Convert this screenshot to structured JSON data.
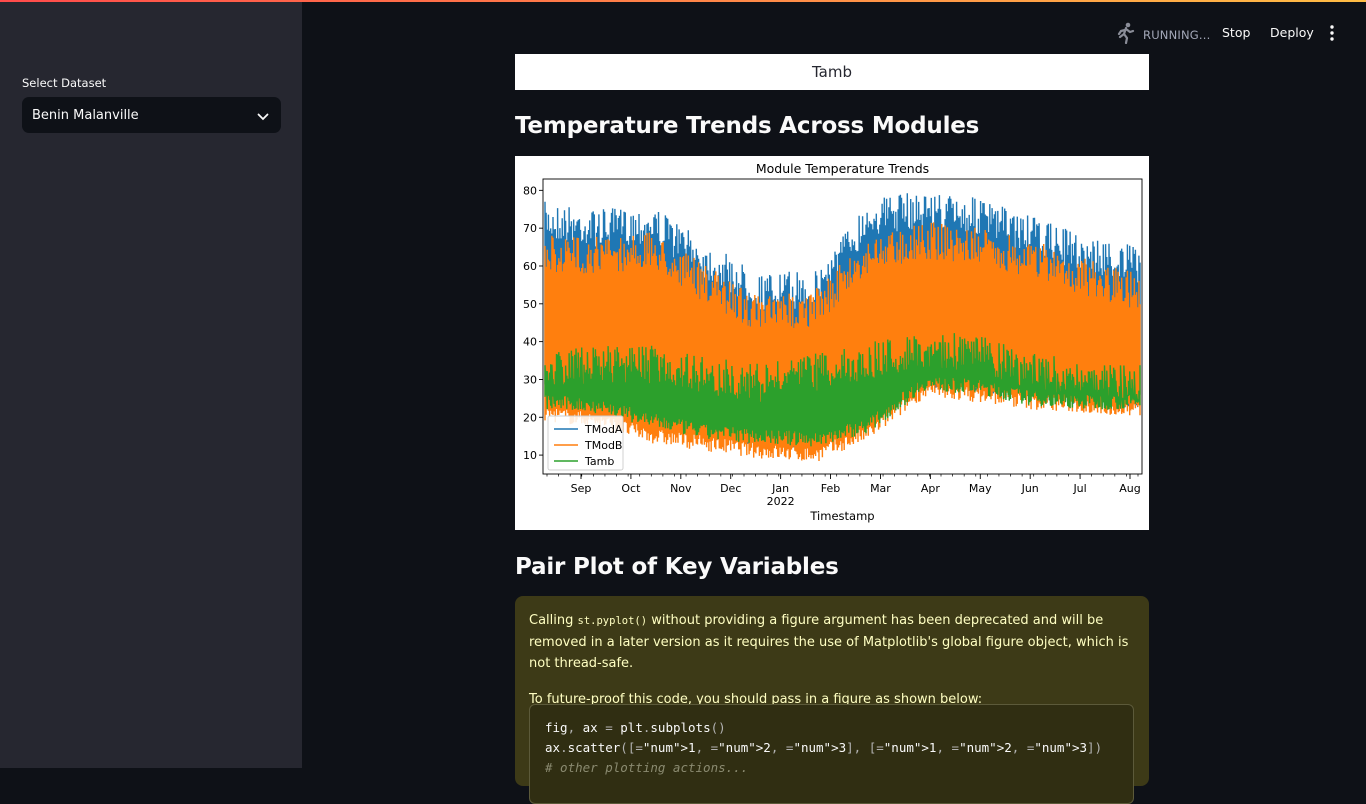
{
  "sidebar": {
    "select_label": "Select Dataset",
    "select_value": "Benin Malanville"
  },
  "header": {
    "status": "RUNNING...",
    "stop_label": "Stop",
    "deploy_label": "Deploy"
  },
  "main": {
    "table_cell": "Tamb",
    "section1_title": "Temperature Trends Across Modules",
    "section2_title": "Pair Plot of Key Variables",
    "warning": {
      "p1_before": "Calling ",
      "p1_code": "st.pyplot()",
      "p1_after": " without providing a figure argument has been deprecated and will be removed in a later version as it requires the use of Matplotlib's global figure object, which is not thread-safe.",
      "p2": "To future-proof this code, you should pass in a figure as shown below:",
      "code_line1": "fig, ax = plt.subplots()",
      "code_line2": "ax.scatter([1, 2, 3], [1, 2, 3])",
      "code_line3": "# other plotting actions..."
    }
  },
  "chart_data": {
    "type": "line",
    "title": "Module Temperature Trends",
    "xlabel": "Timestamp",
    "ylabel": "",
    "x_tick_labels": [
      "Sep",
      "Oct",
      "Nov",
      "Dec",
      "Jan",
      "Feb",
      "Mar",
      "Apr",
      "May",
      "Jun",
      "Jul",
      "Aug"
    ],
    "x_year_label": "2022",
    "y_ticks": [
      10,
      20,
      30,
      40,
      50,
      60,
      70,
      80
    ],
    "ylim": [
      5,
      83
    ],
    "legend_position": "lower-left",
    "series": [
      {
        "name": "TModA",
        "color": "#1f77b4",
        "x": [
          "Sep",
          "Oct",
          "Nov",
          "Dec",
          "Jan",
          "Feb",
          "Mar",
          "Apr",
          "May",
          "Jun",
          "Jul",
          "Aug"
        ],
        "max": [
          77,
          75,
          76,
          66,
          58,
          59,
          78,
          80,
          78,
          73,
          68,
          65
        ],
        "min": [
          25,
          22,
          18,
          15,
          12,
          12,
          18,
          28,
          27,
          24,
          23,
          22
        ]
      },
      {
        "name": "TModB",
        "color": "#ff7f0e",
        "x": [
          "Sep",
          "Oct",
          "Nov",
          "Dec",
          "Jan",
          "Feb",
          "Mar",
          "Apr",
          "May",
          "Jun",
          "Jul",
          "Aug"
        ],
        "max": [
          68,
          68,
          69,
          60,
          52,
          54,
          68,
          72,
          70,
          67,
          62,
          58
        ],
        "min": [
          19,
          17,
          13,
          11,
          9,
          8,
          14,
          25,
          24,
          22,
          21,
          20
        ]
      },
      {
        "name": "Tamb",
        "color": "#2ca02c",
        "x": [
          "Sep",
          "Oct",
          "Nov",
          "Dec",
          "Jan",
          "Feb",
          "Mar",
          "Apr",
          "May",
          "Jun",
          "Jul",
          "Aug"
        ],
        "max": [
          38,
          39,
          39,
          36,
          34,
          37,
          40,
          43,
          42,
          37,
          35,
          34
        ],
        "min": [
          22,
          21,
          17,
          14,
          13,
          12,
          16,
          27,
          26,
          23,
          22,
          22
        ]
      }
    ]
  }
}
